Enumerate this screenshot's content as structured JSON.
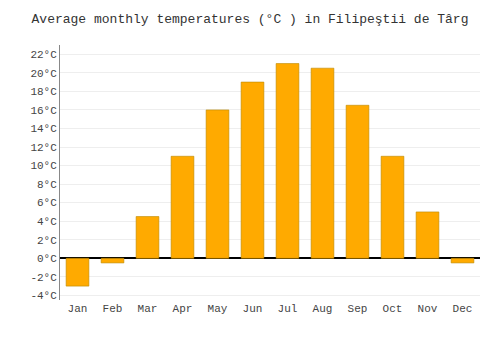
{
  "chart_data": {
    "type": "bar",
    "title": "Average monthly temperatures (°C ) in Filipeştii de Târg",
    "categories": [
      "Jan",
      "Feb",
      "Mar",
      "Apr",
      "May",
      "Jun",
      "Jul",
      "Aug",
      "Sep",
      "Oct",
      "Nov",
      "Dec"
    ],
    "values": [
      -3.0,
      -0.5,
      4.5,
      11.0,
      16.0,
      19.0,
      21.0,
      20.5,
      16.5,
      11.0,
      5.0,
      -0.5
    ],
    "color": "#FFAA00",
    "ylim": [
      -4.5,
      23
    ],
    "yticks": [
      {
        "value": -4,
        "label": "-4°C"
      },
      {
        "value": -2,
        "label": "-2°C"
      },
      {
        "value": 0,
        "label": "0°C"
      },
      {
        "value": 2,
        "label": "2°C"
      },
      {
        "value": 4,
        "label": "4°C"
      },
      {
        "value": 6,
        "label": "6°C"
      },
      {
        "value": 8,
        "label": "8°C"
      },
      {
        "value": 10,
        "label": "10°C"
      },
      {
        "value": 12,
        "label": "12°C"
      },
      {
        "value": 14,
        "label": "14°C"
      },
      {
        "value": 16,
        "label": "16°C"
      },
      {
        "value": 18,
        "label": "18°C"
      },
      {
        "value": 20,
        "label": "20°C"
      },
      {
        "value": 22,
        "label": "22°C"
      }
    ],
    "grid": true
  }
}
